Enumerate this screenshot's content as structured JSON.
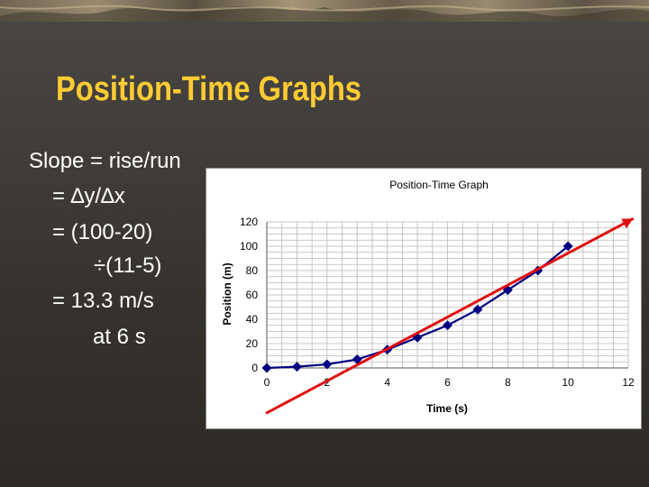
{
  "slide": {
    "title": "Position-Time Graphs",
    "lines": [
      "Slope = rise/run",
      "= ∆y/∆x",
      "= (100-20)",
      "÷(11-5)",
      "= 13.3 m/s",
      "at 6 s"
    ]
  },
  "colors": {
    "title": "#ffcc33",
    "body_text": "#ffffff",
    "series": "#000080",
    "tangent": "#e01010",
    "grid": "#b8b8b8"
  },
  "chart_data": {
    "type": "line",
    "title": "Position-Time Graph",
    "xlabel": "Time (s)",
    "ylabel": "Position (m)",
    "xlim": [
      0,
      12
    ],
    "ylim": [
      0,
      120
    ],
    "xticks": [
      0,
      2,
      4,
      6,
      8,
      10,
      12
    ],
    "yticks": [
      0,
      20,
      40,
      60,
      80,
      100,
      120
    ],
    "grid": true,
    "series": [
      {
        "x": [
          0,
          1,
          2,
          3,
          4,
          5,
          6,
          7,
          8,
          9,
          10
        ],
        "values": [
          0,
          1,
          3,
          7,
          15,
          25,
          35,
          48,
          64,
          80,
          100
        ],
        "marker": "diamond"
      }
    ],
    "tangent_line": {
      "x": [
        0,
        12.2
      ],
      "values": [
        -38,
        122
      ]
    }
  }
}
